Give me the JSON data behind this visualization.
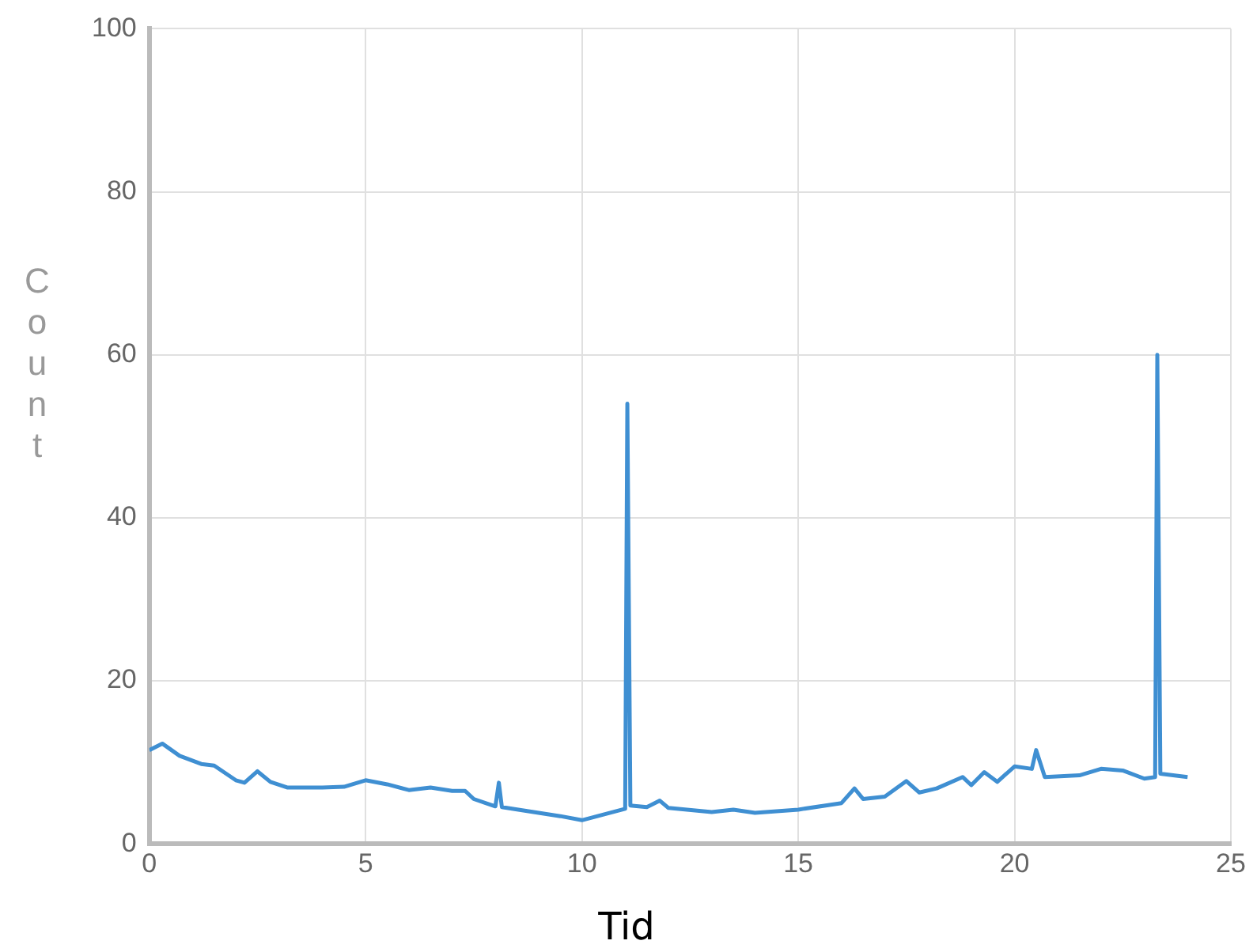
{
  "chart_data": {
    "type": "line",
    "xlabel": "Tid",
    "ylabel": "Count",
    "x": [
      0,
      0.3,
      0.7,
      1.2,
      1.5,
      2,
      2.2,
      2.5,
      2.8,
      3.2,
      4,
      4.5,
      5,
      5.5,
      6,
      6.5,
      7,
      7.3,
      7.5,
      8,
      8.08,
      8.15,
      9,
      9.5,
      10,
      10.5,
      11,
      11.05,
      11.12,
      11.5,
      11.8,
      12,
      13,
      13.5,
      14,
      15,
      16,
      16.3,
      16.5,
      17,
      17.5,
      17.8,
      18.2,
      18.8,
      19,
      19.3,
      19.6,
      20,
      20.4,
      20.5,
      20.7,
      21.5,
      22,
      22.5,
      23,
      23.25,
      23.3,
      23.37,
      24
    ],
    "series": [
      {
        "color": "#3f8fd2",
        "values": [
          11.5,
          12.3,
          10.8,
          9.8,
          9.6,
          7.8,
          7.5,
          8.9,
          7.6,
          6.9,
          6.9,
          7,
          7.8,
          7.3,
          6.6,
          6.9,
          6.5,
          6.5,
          5.5,
          4.6,
          7.5,
          4.5,
          3.8,
          3.4,
          2.9,
          3.6,
          4.3,
          54,
          4.7,
          4.5,
          5.3,
          4.4,
          3.9,
          4.2,
          3.8,
          4.2,
          5,
          6.8,
          5.5,
          5.8,
          7.7,
          6.3,
          6.8,
          8.2,
          7.2,
          8.8,
          7.6,
          9.5,
          9.2,
          11.5,
          8.2,
          8.4,
          9.2,
          9,
          8,
          8.2,
          60,
          8.6,
          8.2
        ]
      }
    ],
    "xlim": [
      0,
      25
    ],
    "xticks": [
      0,
      5,
      10,
      15,
      20,
      25
    ],
    "ylim": [
      0,
      100
    ],
    "yticks": [
      0,
      20,
      40,
      60,
      80,
      100
    ],
    "grid": true,
    "legend": false,
    "marker": "none",
    "line_style": "solid"
  }
}
